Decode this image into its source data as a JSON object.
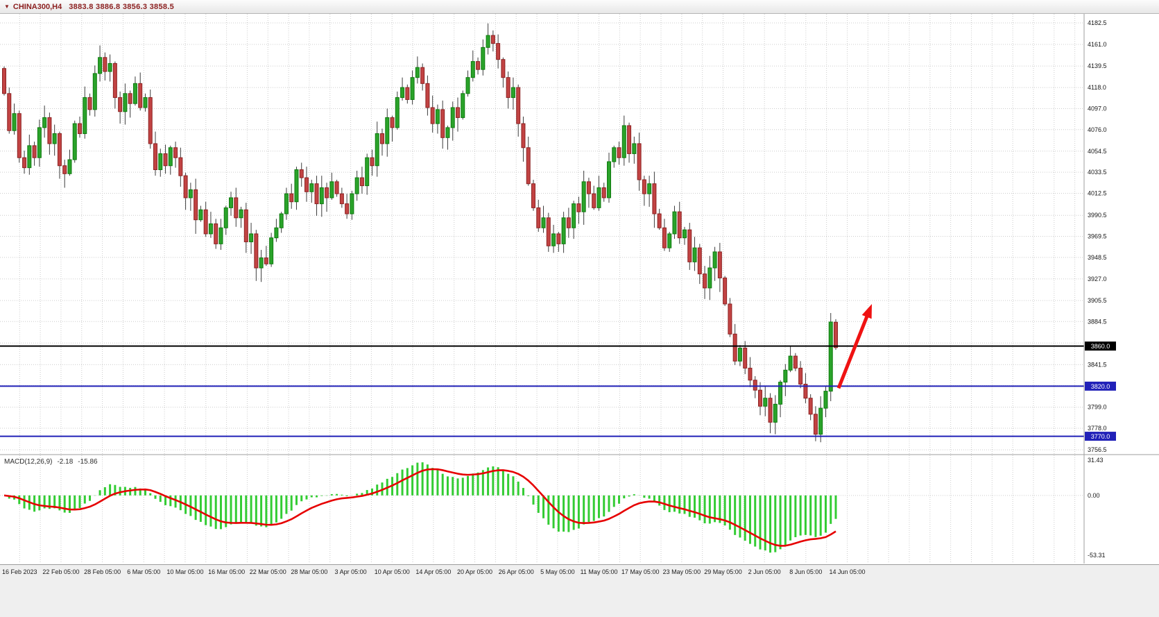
{
  "ui": {
    "header": {
      "symbol_text": "CHINA300,H4",
      "ohlc_text": "3883.8 3886.8 3856.3 3858.5",
      "dropdown_glyph": "▼"
    }
  },
  "chart_data": {
    "type": "candlestick",
    "symbol": "CHINA300",
    "timeframe": "H4",
    "colors": {
      "bull": "#2aa32a",
      "bull_border": "#0e7a0e",
      "bear": "#c24343",
      "bear_border": "#8c2222",
      "wick": "#3c3c3c",
      "grid": "#cccccc",
      "separator": "#9e9e9e",
      "axis_text": "#141414"
    },
    "price_axis": {
      "top_price": 4191.5,
      "bottom_price": 3751.7,
      "ticks": [
        4182.5,
        4161.0,
        4139.5,
        4118.0,
        4097.0,
        4076.0,
        4054.5,
        4033.5,
        4012.5,
        3990.5,
        3969.5,
        3948.5,
        3927.0,
        3905.5,
        3884.5,
        3863.0,
        3841.5,
        3820.5,
        3799.0,
        3778.0,
        3756.5
      ]
    },
    "candles": {
      "first_open": 4137,
      "closes": [
        4112,
        4075,
        4092,
        4048,
        4038,
        4060,
        4048,
        4078,
        4088,
        4062,
        4072,
        4040,
        4032,
        4046,
        4082,
        4072,
        4108,
        4096,
        4132,
        4148,
        4134,
        4142,
        4108,
        4094,
        4112,
        4102,
        4122,
        4098,
        4108,
        4062,
        4036,
        4052,
        4040,
        4058,
        4048,
        4030,
        4008,
        4016,
        3986,
        3996,
        3972,
        3982,
        3962,
        3978,
        3998,
        4008,
        3988,
        3996,
        3964,
        3972,
        3938,
        3948,
        3942,
        3968,
        3978,
        3992,
        4012,
        4004,
        4036,
        4028,
        4014,
        4022,
        4002,
        4018,
        4008,
        4024,
        4012,
        4002,
        3992,
        4012,
        4028,
        4020,
        4048,
        4040,
        4072,
        4062,
        4088,
        4078,
        4108,
        4118,
        4106,
        4128,
        4138,
        4122,
        4098,
        4082,
        4096,
        4068,
        4078,
        4098,
        4088,
        4112,
        4128,
        4144,
        4136,
        4158,
        4170,
        4162,
        4146,
        4128,
        4108,
        4118,
        4082,
        4058,
        4022,
        3998,
        3978,
        3988,
        3960,
        3972,
        3962,
        3988,
        3978,
        4002,
        3994,
        4024,
        4012,
        3998,
        4018,
        4008,
        4044,
        4058,
        4048,
        4080,
        4052,
        4062,
        4026,
        4012,
        4022,
        3992,
        3978,
        3958,
        3972,
        3994,
        3968,
        3976,
        3944,
        3958,
        3932,
        3918,
        3938,
        3954,
        3928,
        3902,
        3872,
        3845,
        3858,
        3838,
        3826,
        3816,
        3800,
        3808,
        3784,
        3802,
        3824,
        3836,
        3850,
        3838,
        3822,
        3808,
        3792,
        3772,
        3798,
        3815,
        3884,
        3858.5
      ],
      "last_candle": {
        "open": 3883.8,
        "high": 3886.8,
        "low": 3856.3,
        "close": 3858.5
      }
    },
    "horizontal_levels": [
      {
        "price": 3860.0,
        "label": "3860.0",
        "color": "#000000"
      },
      {
        "price": 3820.0,
        "label": "3820.0",
        "color": "#2121b8"
      },
      {
        "price": 3770.0,
        "label": "3770.0",
        "color": "#2121b8"
      }
    ],
    "trend_arrow": {
      "from_price": 3818,
      "to_price": 3902,
      "color": "#ef1212"
    },
    "time_labels": [
      "16 Feb 2023",
      "22 Feb 05:00",
      "28 Feb 05:00",
      "6 Mar 05:00",
      "10 Mar 05:00",
      "16 Mar 05:00",
      "22 Mar 05:00",
      "28 Mar 05:00",
      "3 Apr 05:00",
      "10 Apr 05:00",
      "14 Apr 05:00",
      "20 Apr 05:00",
      "26 Apr 05:00",
      "5 May 05:00",
      "11 May 05:00",
      "17 May 05:00",
      "23 May 05:00",
      "29 May 05:00",
      "2 Jun 05:00",
      "8 Jun 05:00",
      "14 Jun 05:00"
    ],
    "macd": {
      "title": "MACD(12,26,9)",
      "current_hist": "-2.18",
      "current_signal": "-15.86",
      "axis_max": 31.43,
      "axis_min": -53.31,
      "axis_ticks": [
        "31.43",
        "0.00",
        "-53.31"
      ],
      "params": {
        "fast": 12,
        "slow": 26,
        "signal": 9
      },
      "histogram_color": "#33cc33",
      "signal_color": "#e60000"
    }
  }
}
